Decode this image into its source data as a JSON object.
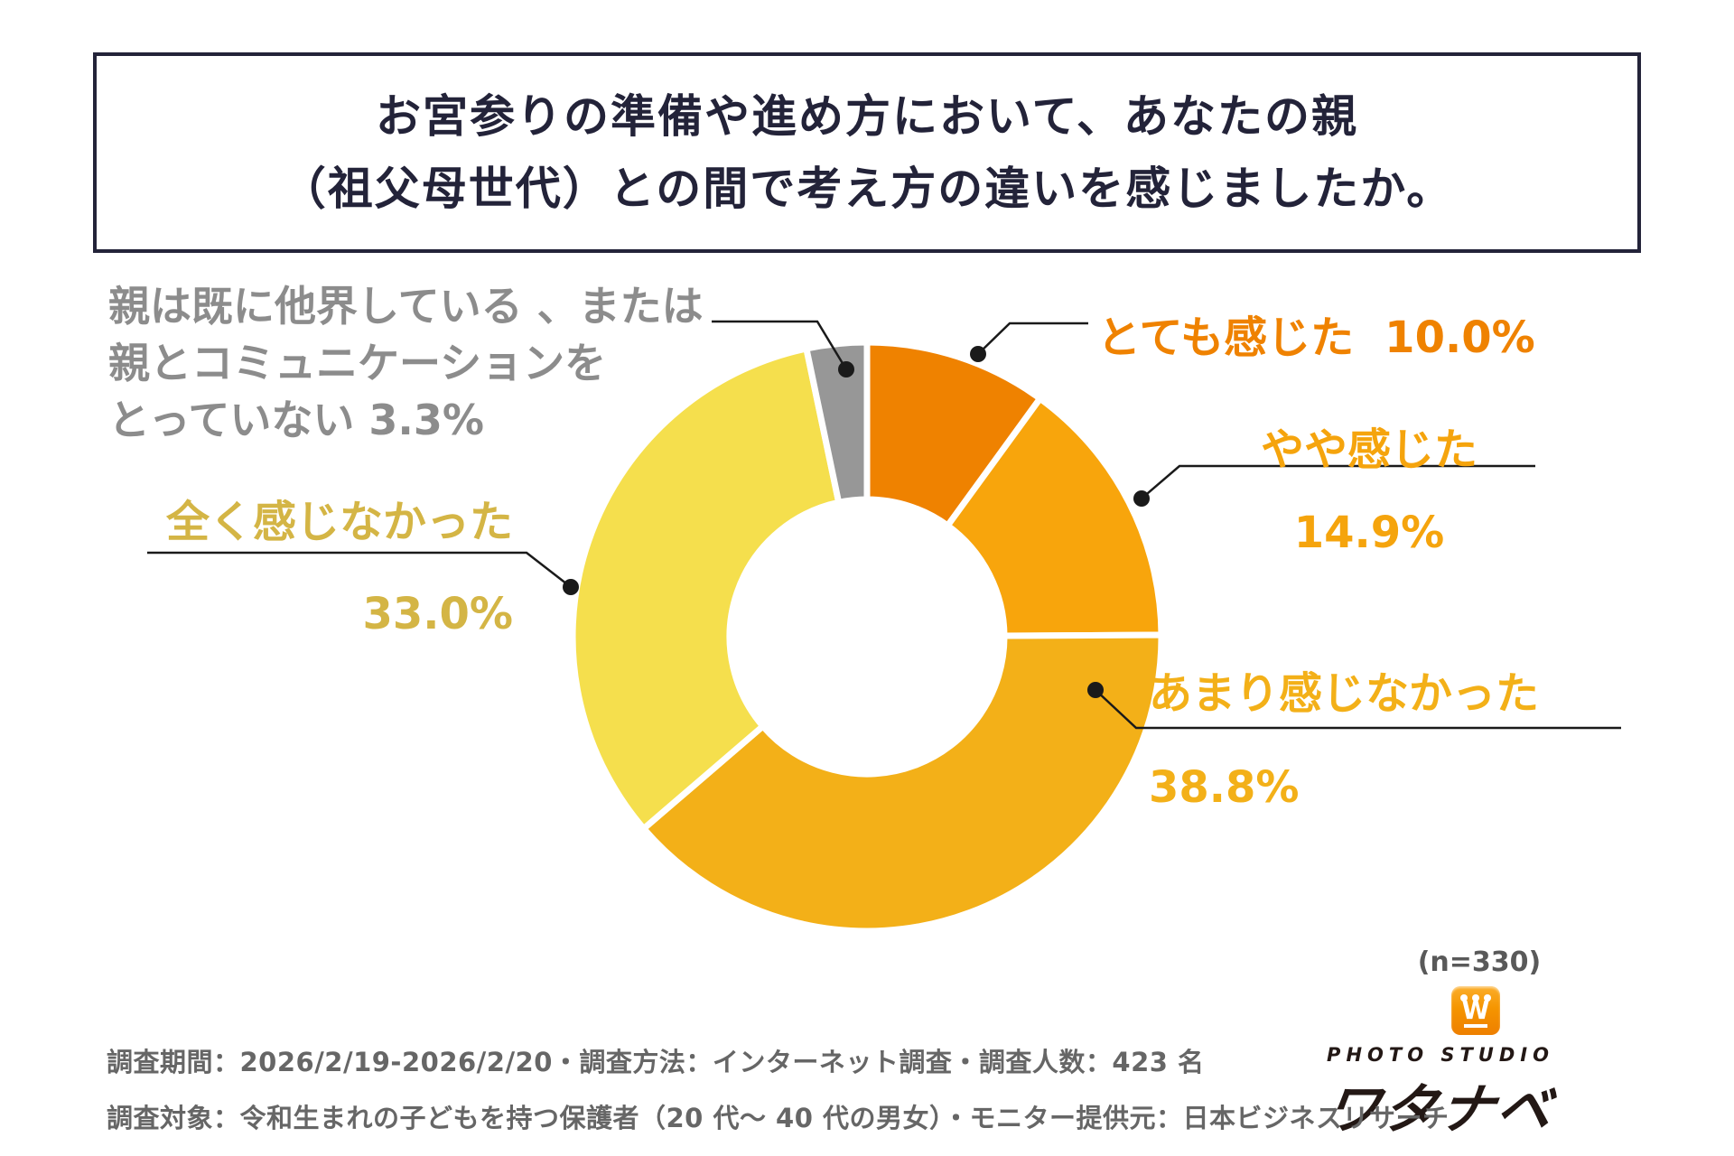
{
  "header": {
    "title_line1": "お宮参りの準備や進め方において、あなたの親",
    "title_line2": "（祖父母世代）との間で考え方の違いを感じましたか。"
  },
  "chart_data": {
    "type": "pie",
    "subtype": "donut",
    "title": "お宮参りの準備や進め方において、あなたの親（祖父母世代）との間で考え方の違いを感じましたか。",
    "start_angle_deg": 0,
    "direction": "clockwise",
    "sample_label": "(n=330)",
    "slices": [
      {
        "name": "とても感じた",
        "value": 10.0,
        "pct_label": "10.0%",
        "color": "#EF8200",
        "label_color": "#EF8200"
      },
      {
        "name": "やや感じた",
        "value": 14.9,
        "pct_label": "14.9%",
        "color": "#F8A50C",
        "label_color": "#F5A40D"
      },
      {
        "name": "あまり感じなかった",
        "value": 38.8,
        "pct_label": "38.8%",
        "color": "#F3B018",
        "label_color": "#F3B018"
      },
      {
        "name": "全く感じなかった",
        "value": 33.0,
        "pct_label": "33.0%",
        "color": "#F5DF4D",
        "label_color": "#D4B545"
      },
      {
        "name": "親は既に他界している 、または親とコミュニケーションをとっていない",
        "value": 3.3,
        "pct_label": "3.3%",
        "color": "#979797",
        "label_color": "#8C8C8C"
      }
    ],
    "gray_label_multiline": "親は既に他界している 、または\n親とコミュニケーションを\nとっていない 3.3%"
  },
  "footer": {
    "note_line1": "調査期間：2026/2/19-2026/2/20・調査方法：インターネット調査・調査人数：423 名",
    "note_line2": "調査対象：令和生まれの子どもを持つ保護者（20 代～ 40 代の男女）・モニター提供元：日本ビジネスリサーチ"
  },
  "logo": {
    "studio": "PHOTO STUDIO",
    "name": "ワタナベ",
    "mark": "W"
  }
}
